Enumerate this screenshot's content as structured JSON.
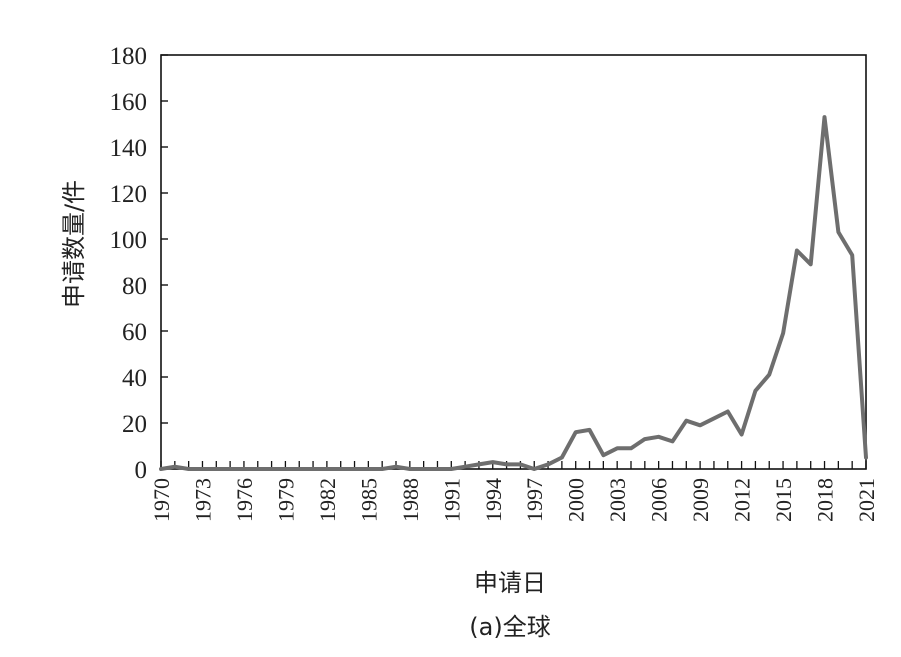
{
  "chart_data": {
    "type": "line",
    "ylabel": "申请数量/件",
    "xlabel": "申请日",
    "caption": "(a)全球",
    "xlim": [
      1970,
      2021
    ],
    "ylim": [
      0,
      180
    ],
    "yticks": [
      "0",
      "20",
      "40",
      "60",
      "80",
      "100",
      "120",
      "140",
      "160",
      "180"
    ],
    "xticks": [
      "1970",
      "1973",
      "1976",
      "1979",
      "1982",
      "1985",
      "1988",
      "1991",
      "1994",
      "1997",
      "2000",
      "2003",
      "2006",
      "2009",
      "2012",
      "2015",
      "2018",
      "2021"
    ],
    "grid": false,
    "series_color": "#6e6e6e",
    "x": [
      1970,
      1971,
      1972,
      1973,
      1974,
      1975,
      1976,
      1977,
      1978,
      1979,
      1980,
      1981,
      1982,
      1983,
      1984,
      1985,
      1986,
      1987,
      1988,
      1989,
      1990,
      1991,
      1992,
      1993,
      1994,
      1995,
      1996,
      1997,
      1998,
      1999,
      2000,
      2001,
      2002,
      2003,
      2004,
      2005,
      2006,
      2007,
      2008,
      2009,
      2010,
      2011,
      2012,
      2013,
      2014,
      2015,
      2016,
      2017,
      2018,
      2019,
      2020,
      2021
    ],
    "values": [
      0,
      1,
      0,
      0,
      0,
      0,
      0,
      0,
      0,
      0,
      0,
      0,
      0,
      0,
      0,
      0,
      0,
      1,
      0,
      0,
      0,
      0,
      1,
      2,
      3,
      2,
      2,
      0,
      2,
      5,
      16,
      17,
      6,
      9,
      9,
      13,
      14,
      12,
      21,
      19,
      22,
      25,
      15,
      34,
      41,
      59,
      95,
      89,
      153,
      103,
      93,
      5
    ]
  }
}
